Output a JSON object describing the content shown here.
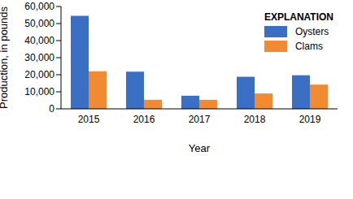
{
  "chart_data": {
    "type": "bar",
    "x_label": "Year",
    "y_label": "Production, in pounds",
    "legend_title": "EXPLANATION",
    "legend": "top-right",
    "grid": false,
    "categories": [
      "2015",
      "2016",
      "2017",
      "2018",
      "2019"
    ],
    "series": [
      {
        "name": "Oysters",
        "color": "#3a6fc4",
        "values": [
          54500,
          21800,
          7700,
          18800,
          19700
        ]
      },
      {
        "name": "Clams",
        "color": "#f28a33",
        "values": [
          22000,
          5300,
          5300,
          9000,
          14200
        ]
      }
    ],
    "ylim": [
      0,
      60000
    ],
    "yticks": [
      0,
      {
        "value": 10000,
        "label": "10,000"
      },
      {
        "value": 20000,
        "label": "20,000"
      },
      {
        "value": 30000,
        "label": "30,000"
      },
      {
        "value": 40000,
        "label": "40,000"
      },
      {
        "value": 50000,
        "label": "50,000"
      },
      {
        "value": 60000,
        "label": "60,000"
      }
    ]
  }
}
